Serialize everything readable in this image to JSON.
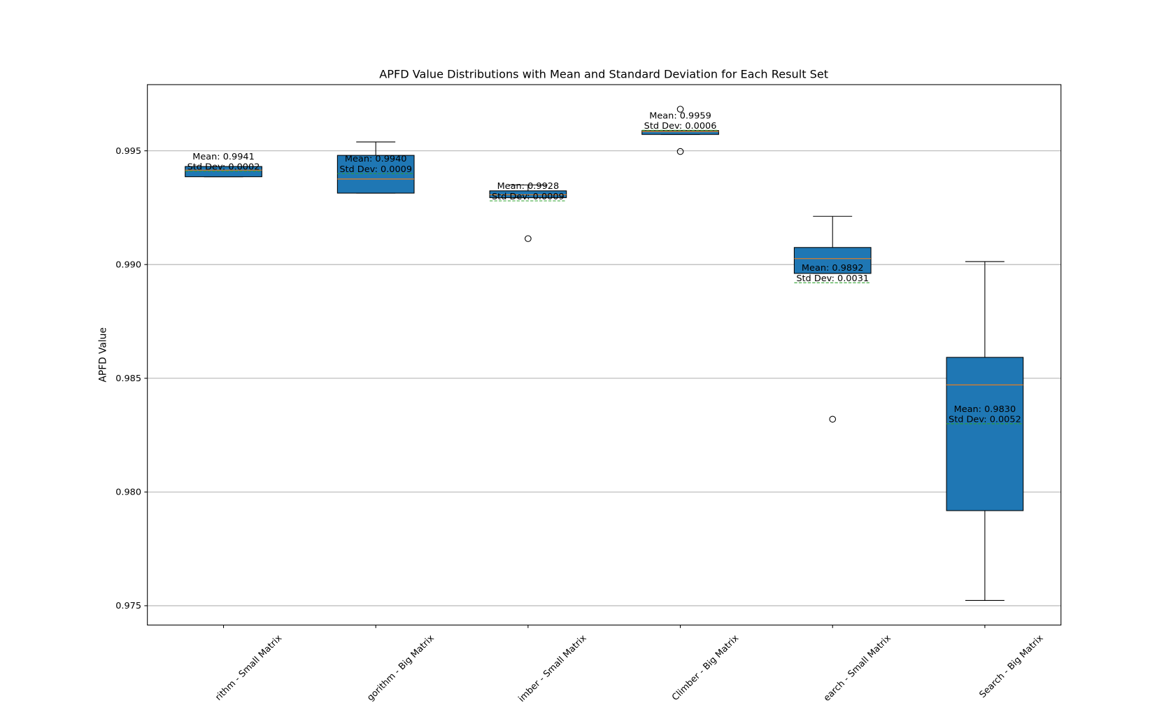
{
  "chart_data": {
    "type": "box",
    "title": "APFD Value Distributions with Mean and Standard Deviation for Each Result Set",
    "y_label": "APFD Value",
    "categories": [
      "rithm - Small Matrix",
      "gorithm - Big Matrix",
      "imber - Small Matrix",
      "Climber - Big Matrix",
      "earch - Small Matrix",
      "Search - Big Matrix"
    ],
    "color": "#1f77b4",
    "median_color": "#ff7f0e",
    "mean_color": "#2ca02c",
    "boxes": [
      {
        "whisker_low": 0.99386,
        "q1": 0.99386,
        "median": 0.99415,
        "q3": 0.99431,
        "whisker_high": 0.99431,
        "outliers": [],
        "mean": 0.9941,
        "mean_label": "Mean: 0.9941",
        "std_label": "Std Dev: 0.0002"
      },
      {
        "whisker_low": 0.99314,
        "q1": 0.99314,
        "median": 0.99376,
        "q3": 0.9948,
        "whisker_high": 0.99539,
        "outliers": [],
        "mean": 0.994,
        "mean_label": "Mean: 0.9940",
        "std_label": "Std Dev: 0.0009"
      },
      {
        "whisker_low": 0.99294,
        "q1": 0.99294,
        "median": 0.99307,
        "q3": 0.99324,
        "whisker_high": 0.9935,
        "outliers": [
          0.99114
        ],
        "mean": 0.9928,
        "mean_label": "Mean: 0.9928",
        "std_label": "Std Dev: 0.0009"
      },
      {
        "whisker_low": 0.99572,
        "q1": 0.99572,
        "median": 0.99585,
        "q3": 0.99589,
        "whisker_high": 0.99589,
        "outliers": [
          0.99683,
          0.99497
        ],
        "mean": 0.9959,
        "mean_label": "Mean: 0.9959",
        "std_label": "Std Dev: 0.0006"
      },
      {
        "whisker_low": 0.98961,
        "q1": 0.98961,
        "median": 0.99026,
        "q3": 0.99075,
        "whisker_high": 0.99212,
        "outliers": [
          0.9832
        ],
        "mean": 0.9892,
        "mean_label": "Mean: 0.9892",
        "std_label": "Std Dev: 0.0031"
      },
      {
        "whisker_low": 0.97523,
        "q1": 0.97918,
        "median": 0.98471,
        "q3": 0.98592,
        "whisker_high": 0.99013,
        "outliers": [],
        "mean": 0.983,
        "mean_label": "Mean: 0.9830",
        "std_label": "Std Dev: 0.0052"
      }
    ],
    "ylim": [
      0.97415,
      0.99791
    ],
    "yticks": [
      0.975,
      {
        "value": 0.98,
        "label": "0.980"
      },
      0.985,
      {
        "value": 0.99,
        "label": "0.990"
      },
      0.995
    ],
    "grid": true
  }
}
